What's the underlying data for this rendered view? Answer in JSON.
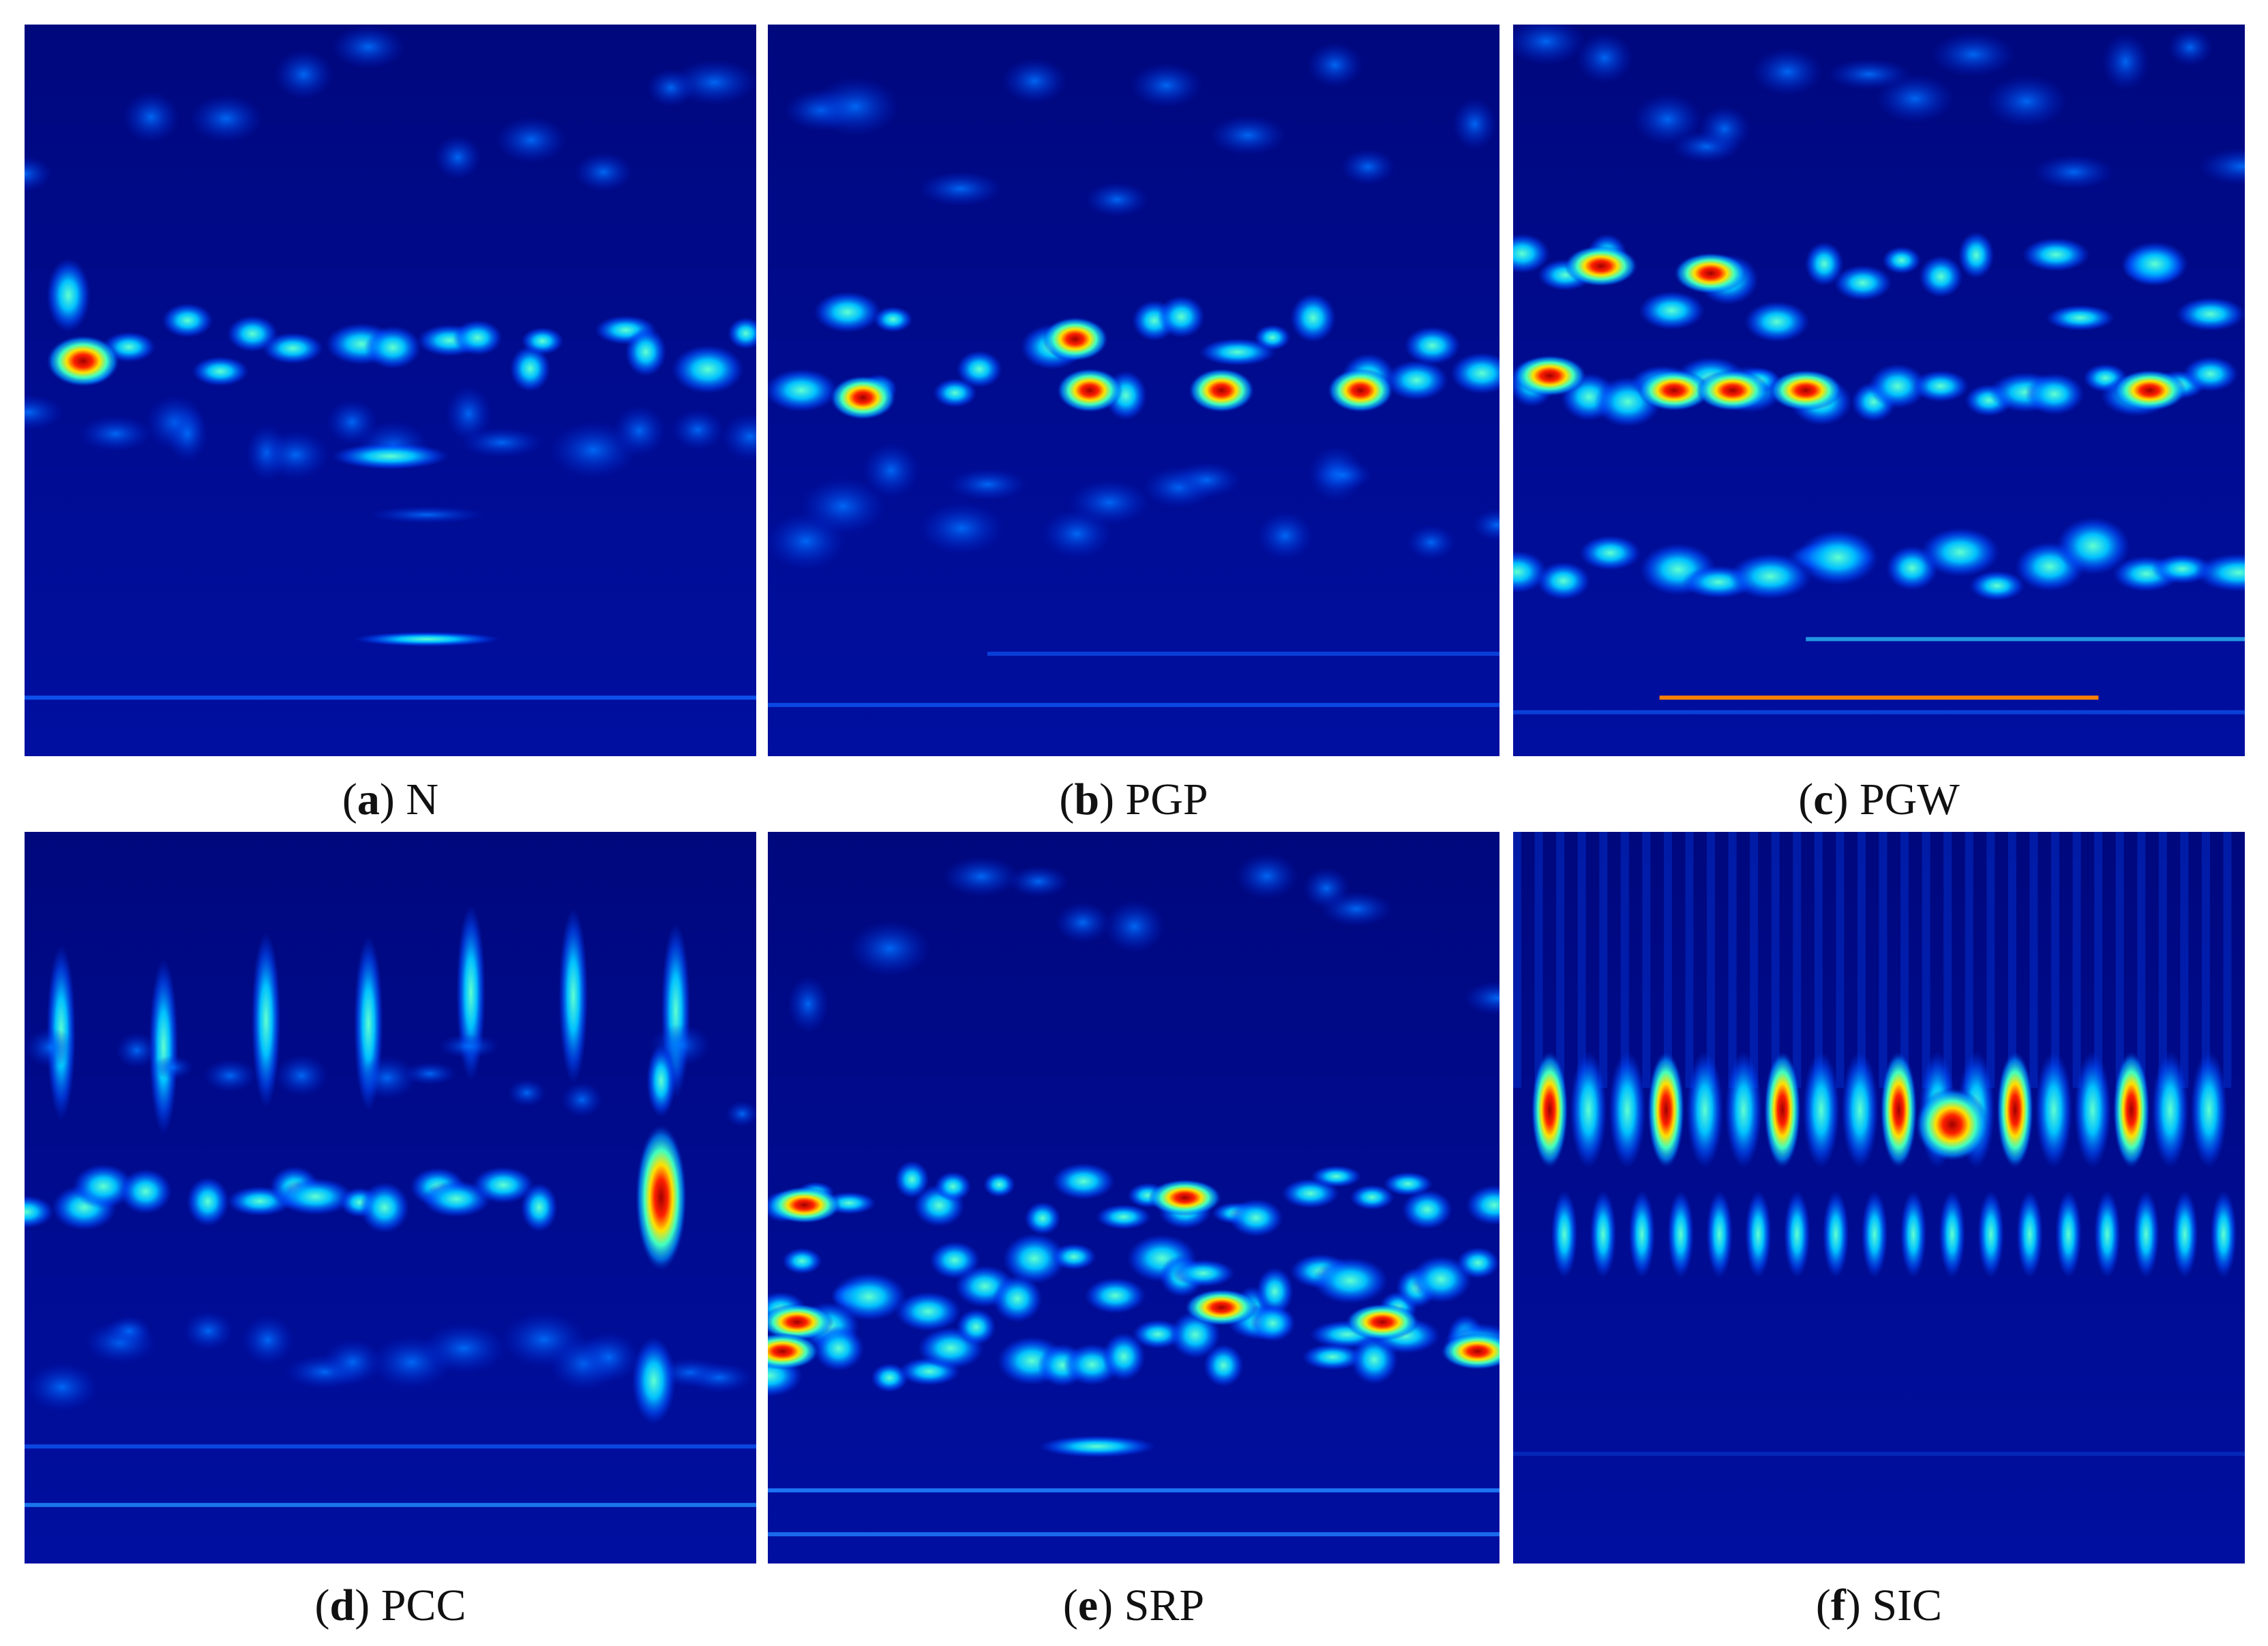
{
  "panels": [
    {
      "caption": [
        "(",
        "a",
        ") N"
      ]
    },
    {
      "caption": [
        "(",
        "b",
        ") PGP"
      ]
    },
    {
      "caption": [
        "(",
        "c",
        ") PGW"
      ]
    },
    {
      "caption": [
        "(",
        "d",
        ") PCC"
      ]
    },
    {
      "caption": [
        "(",
        "e",
        ") SRP"
      ]
    },
    {
      "caption": [
        "(",
        "f",
        ") SIC"
      ]
    }
  ]
}
